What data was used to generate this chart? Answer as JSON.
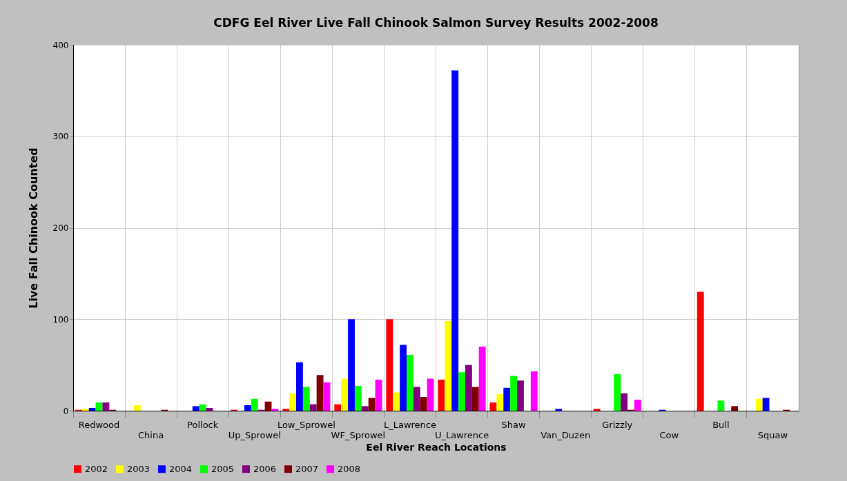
{
  "chart_data": {
    "type": "bar",
    "title": "CDFG Eel River Live Fall Chinook Salmon Survey Results 2002-2008",
    "xlabel": "Eel River Reach Locations",
    "ylabel": "Live Fall Chinook Counted",
    "categories": [
      "Redwood",
      "China",
      "Pollock",
      "Up_Sprowel",
      "Low_Sprowel",
      "WF_Sprowel",
      "L_Lawrence",
      "U_Lawrence",
      "Shaw",
      "Van_Duzen",
      "Grizzly",
      "Cow",
      "Bull",
      "Squaw"
    ],
    "series": [
      {
        "name": "2002",
        "color": "#ff0000",
        "values": [
          1,
          null,
          null,
          1,
          2,
          7,
          100,
          34,
          9,
          null,
          2,
          null,
          130,
          null
        ]
      },
      {
        "name": "2003",
        "color": "#ffff00",
        "values": [
          2,
          6,
          null,
          null,
          19,
          35,
          20,
          98,
          18,
          null,
          null,
          null,
          null,
          13
        ]
      },
      {
        "name": "2004",
        "color": "#0000ff",
        "values": [
          3,
          null,
          5,
          6,
          53,
          100,
          72,
          372,
          25,
          2,
          null,
          1,
          null,
          14
        ]
      },
      {
        "name": "2005",
        "color": "#00ff00",
        "values": [
          9,
          null,
          7,
          13,
          26,
          27,
          61,
          42,
          38,
          null,
          40,
          null,
          11,
          null
        ]
      },
      {
        "name": "2006",
        "color": "#800080",
        "values": [
          9,
          null,
          3,
          1,
          7,
          5,
          26,
          50,
          33,
          null,
          19,
          null,
          null,
          null
        ]
      },
      {
        "name": "2007",
        "color": "#800000",
        "values": [
          1,
          1,
          null,
          10,
          39,
          14,
          15,
          26,
          null,
          null,
          1,
          null,
          5,
          1
        ]
      },
      {
        "name": "2008",
        "color": "#ff00ff",
        "values": [
          null,
          null,
          null,
          2,
          31,
          34,
          35,
          70,
          43,
          null,
          12,
          null,
          null,
          null
        ]
      }
    ],
    "ylim": [
      0,
      400
    ],
    "yticks": [
      0,
      100,
      200,
      300,
      400
    ],
    "grid": true,
    "legend": "bottom"
  }
}
